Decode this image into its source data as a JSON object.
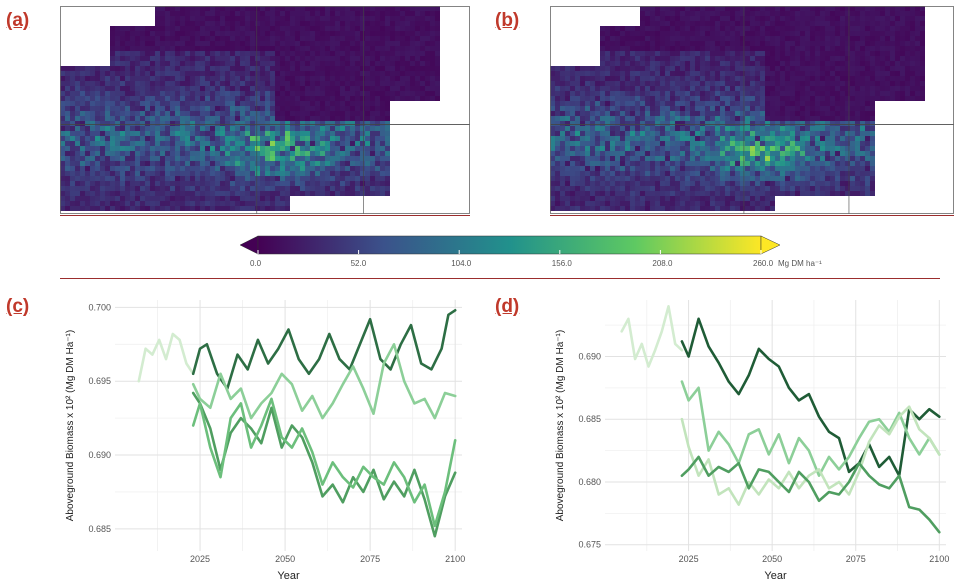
{
  "panels": {
    "a": "(a)",
    "b": "(b)",
    "c": "(c)",
    "d": "(d)"
  },
  "colorbar": {
    "ticks": [
      "0.0",
      "52.0",
      "104.0",
      "156.0",
      "208.0",
      "260.0"
    ],
    "unit": "Mg DM ha⁻¹",
    "min": 0,
    "max": 260,
    "colors": [
      "#440154",
      "#3b528b",
      "#21918c",
      "#5ec962",
      "#fde725"
    ]
  },
  "chart_data": [
    {
      "panel": "(c)",
      "type": "line",
      "xlabel": "Year",
      "ylabel": "Aboveground Biomass x 10² (Mg DM Ha⁻¹)",
      "xlim": [
        2000,
        2102
      ],
      "ylim": [
        0.6835,
        0.7005
      ],
      "xticks": [
        2025,
        2050,
        2075,
        2100
      ],
      "yticks": [
        0.685,
        0.69,
        0.695,
        0.7
      ],
      "ytick_labels": [
        "0.685",
        "0.690",
        "0.695",
        "0.700"
      ],
      "series": [
        {
          "color": "#d3ecd0",
          "x": [
            2007,
            2009,
            2011,
            2013,
            2015,
            2017,
            2019,
            2021,
            2023
          ],
          "values": [
            0.695,
            0.6972,
            0.6968,
            0.6978,
            0.6965,
            0.6982,
            0.6978,
            0.6962,
            0.6955
          ]
        },
        {
          "color": "#2d6e44",
          "x": [
            2023,
            2025,
            2027,
            2030,
            2033,
            2036,
            2039,
            2042,
            2045,
            2048,
            2051,
            2054,
            2057,
            2060,
            2063,
            2066,
            2069,
            2072,
            2075,
            2078,
            2081,
            2084,
            2087,
            2090,
            2093,
            2096,
            2098,
            2100
          ],
          "values": [
            0.6955,
            0.6972,
            0.6975,
            0.6955,
            0.6945,
            0.6968,
            0.6958,
            0.6978,
            0.6962,
            0.6972,
            0.6985,
            0.6965,
            0.6955,
            0.6965,
            0.6982,
            0.6965,
            0.6958,
            0.6975,
            0.6992,
            0.6965,
            0.6958,
            0.6975,
            0.6988,
            0.6962,
            0.6958,
            0.6972,
            0.6995,
            0.6998
          ]
        },
        {
          "color": "#8ccf98",
          "x": [
            2023,
            2025,
            2028,
            2031,
            2034,
            2037,
            2040,
            2043,
            2046,
            2049,
            2052,
            2055,
            2058,
            2061,
            2064,
            2067,
            2070,
            2073,
            2076,
            2079,
            2082,
            2085,
            2088,
            2091,
            2094,
            2097,
            2100
          ],
          "values": [
            0.6948,
            0.6938,
            0.6932,
            0.6955,
            0.6938,
            0.6945,
            0.6925,
            0.6935,
            0.6942,
            0.6955,
            0.6948,
            0.693,
            0.694,
            0.6925,
            0.6935,
            0.6948,
            0.696,
            0.6945,
            0.6928,
            0.6962,
            0.6975,
            0.695,
            0.6935,
            0.6938,
            0.6925,
            0.6942,
            0.694
          ]
        },
        {
          "color": "#4f9e60",
          "x": [
            2023,
            2025,
            2028,
            2031,
            2034,
            2037,
            2040,
            2043,
            2046,
            2049,
            2052,
            2055,
            2058,
            2061,
            2064,
            2067,
            2070,
            2073,
            2076,
            2079,
            2082,
            2085,
            2088,
            2091,
            2094,
            2097,
            2100
          ],
          "values": [
            0.6942,
            0.6935,
            0.6918,
            0.689,
            0.6915,
            0.6925,
            0.6918,
            0.6908,
            0.6932,
            0.6905,
            0.692,
            0.6912,
            0.6895,
            0.6872,
            0.688,
            0.6868,
            0.6885,
            0.6875,
            0.689,
            0.687,
            0.6882,
            0.6872,
            0.689,
            0.687,
            0.6845,
            0.6872,
            0.6888
          ]
        },
        {
          "color": "#6cbf7c",
          "x": [
            2023,
            2025,
            2028,
            2031,
            2034,
            2037,
            2040,
            2043,
            2046,
            2049,
            2052,
            2055,
            2058,
            2061,
            2064,
            2067,
            2070,
            2073,
            2076,
            2079,
            2082,
            2085,
            2088,
            2091,
            2094,
            2097,
            2100
          ],
          "values": [
            0.692,
            0.6935,
            0.6905,
            0.6885,
            0.6925,
            0.6935,
            0.6905,
            0.692,
            0.6938,
            0.6912,
            0.6905,
            0.6918,
            0.6902,
            0.688,
            0.6895,
            0.6885,
            0.6878,
            0.6892,
            0.6885,
            0.688,
            0.6895,
            0.6885,
            0.6868,
            0.688,
            0.6852,
            0.6875,
            0.691
          ]
        }
      ]
    },
    {
      "panel": "(d)",
      "type": "line",
      "xlabel": "Year",
      "ylabel": "Aboveground Biomass x 10² (Mg DM Ha⁻¹)",
      "xlim": [
        2000,
        2102
      ],
      "ylim": [
        0.6745,
        0.6945
      ],
      "xticks": [
        2025,
        2050,
        2075,
        2100
      ],
      "yticks": [
        0.675,
        0.68,
        0.685,
        0.69
      ],
      "ytick_labels": [
        "0.675",
        "0.680",
        "0.685",
        "0.690"
      ],
      "series": [
        {
          "color": "#d3ecd0",
          "x": [
            2005,
            2007,
            2009,
            2011,
            2013,
            2015,
            2017,
            2019,
            2021,
            2023
          ],
          "values": [
            0.692,
            0.693,
            0.6898,
            0.691,
            0.6892,
            0.6905,
            0.692,
            0.694,
            0.691,
            0.6905
          ]
        },
        {
          "color": "#1f5c36",
          "x": [
            2023,
            2025,
            2028,
            2031,
            2034,
            2037,
            2040,
            2043,
            2046,
            2049,
            2052,
            2055,
            2058,
            2061,
            2064,
            2067,
            2070,
            2073,
            2076,
            2079,
            2082,
            2085,
            2088,
            2091,
            2094,
            2097,
            2100
          ],
          "values": [
            0.6912,
            0.69,
            0.693,
            0.6908,
            0.6895,
            0.688,
            0.687,
            0.6885,
            0.6906,
            0.6898,
            0.6892,
            0.6875,
            0.6865,
            0.687,
            0.6852,
            0.684,
            0.6835,
            0.6808,
            0.6815,
            0.683,
            0.6812,
            0.682,
            0.6805,
            0.6858,
            0.685,
            0.6858,
            0.6852
          ]
        },
        {
          "color": "#8ccf98",
          "x": [
            2023,
            2025,
            2028,
            2031,
            2034,
            2037,
            2040,
            2043,
            2046,
            2049,
            2052,
            2055,
            2058,
            2061,
            2064,
            2067,
            2070,
            2073,
            2076,
            2079,
            2082,
            2085,
            2088,
            2091,
            2094,
            2097,
            2100
          ],
          "values": [
            0.688,
            0.6865,
            0.6875,
            0.6825,
            0.684,
            0.683,
            0.6815,
            0.6838,
            0.6842,
            0.6822,
            0.6838,
            0.6815,
            0.6835,
            0.6825,
            0.6805,
            0.682,
            0.681,
            0.682,
            0.6835,
            0.6848,
            0.685,
            0.684,
            0.6855,
            0.6835,
            0.6822,
            0.6835,
            0.6822
          ]
        },
        {
          "color": "#c2e4bc",
          "x": [
            2023,
            2025,
            2028,
            2031,
            2034,
            2037,
            2040,
            2043,
            2046,
            2049,
            2052,
            2055,
            2058,
            2061,
            2064,
            2067,
            2070,
            2073,
            2076,
            2079,
            2082,
            2085,
            2088,
            2091,
            2094,
            2097,
            2100
          ],
          "values": [
            0.685,
            0.6828,
            0.6805,
            0.6818,
            0.679,
            0.6795,
            0.6782,
            0.68,
            0.679,
            0.6802,
            0.6795,
            0.6808,
            0.6795,
            0.6805,
            0.681,
            0.6795,
            0.68,
            0.679,
            0.6808,
            0.6832,
            0.6845,
            0.6838,
            0.6852,
            0.686,
            0.6842,
            0.6835,
            0.6822
          ]
        },
        {
          "color": "#4f9e60",
          "x": [
            2023,
            2025,
            2028,
            2031,
            2034,
            2037,
            2040,
            2043,
            2046,
            2049,
            2052,
            2055,
            2058,
            2061,
            2064,
            2067,
            2070,
            2073,
            2076,
            2079,
            2082,
            2085,
            2088,
            2091,
            2094,
            2097,
            2100
          ],
          "values": [
            0.6805,
            0.681,
            0.682,
            0.6805,
            0.6812,
            0.6808,
            0.6815,
            0.6795,
            0.681,
            0.6808,
            0.68,
            0.6792,
            0.6808,
            0.68,
            0.6785,
            0.6792,
            0.679,
            0.68,
            0.6815,
            0.6805,
            0.6798,
            0.6795,
            0.6805,
            0.678,
            0.6778,
            0.677,
            0.676
          ]
        }
      ]
    }
  ]
}
